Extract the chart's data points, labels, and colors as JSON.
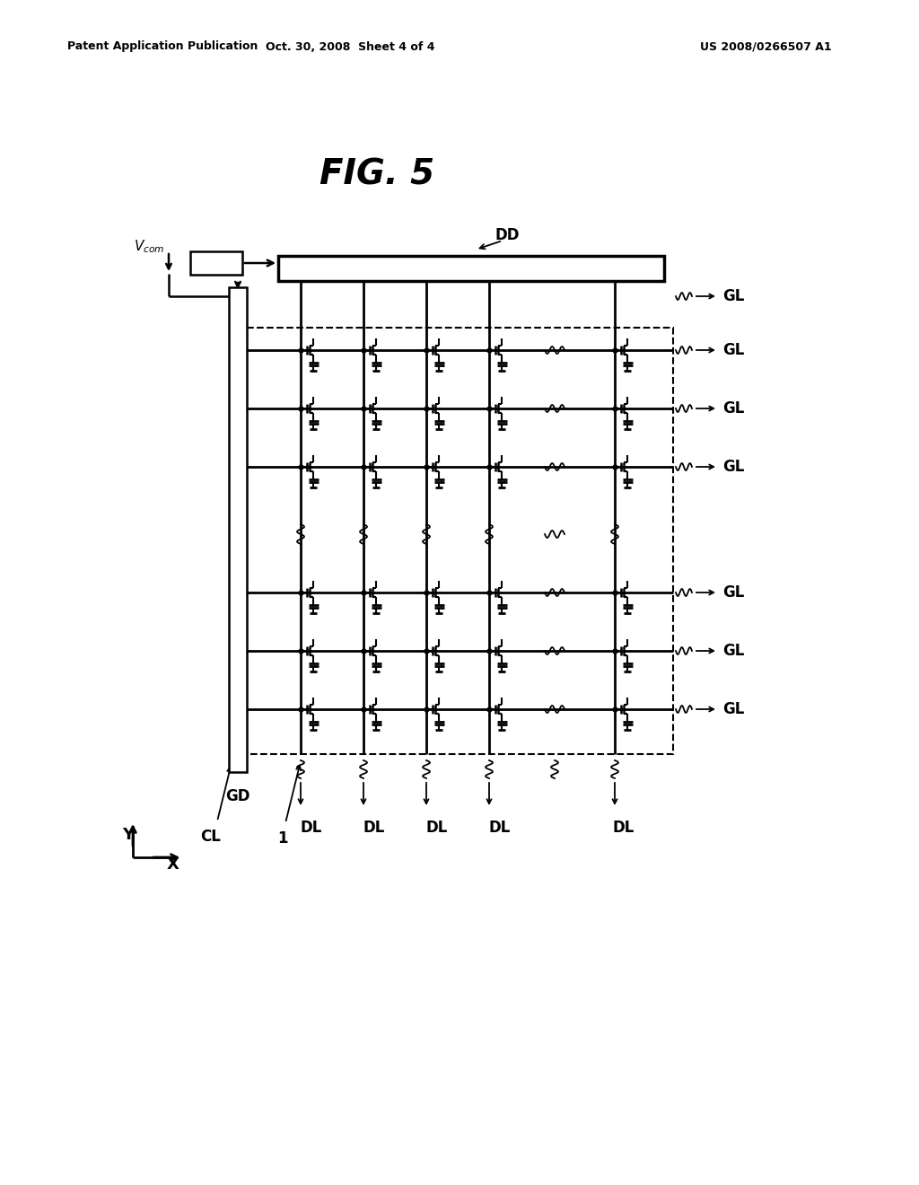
{
  "bg_color": "#ffffff",
  "header_left": "Patent Application Publication",
  "header_mid": "Oct. 30, 2008  Sheet 4 of 4",
  "header_right": "US 2008/0266507 A1",
  "fig_width": 10.24,
  "fig_height": 13.2,
  "header_fontsize": 9,
  "title_fontsize": 28,
  "label_fontsize": 12,
  "small_fontsize": 10,
  "tcon_fontsize": 9
}
